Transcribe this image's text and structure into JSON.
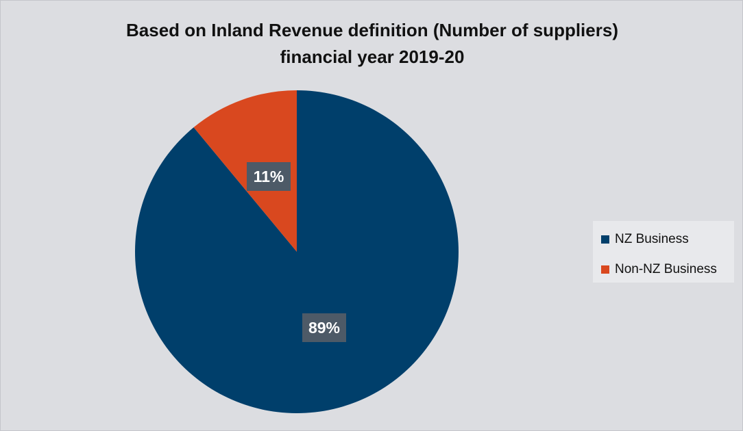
{
  "chart_data": {
    "type": "pie",
    "title": "Based on Inland Revenue definition (Number of suppliers)",
    "subtitle": "financial year 2019-20",
    "series": [
      {
        "name": "NZ Business",
        "value": 89,
        "label": "89%",
        "color": "#003f6b"
      },
      {
        "name": "Non-NZ Business",
        "value": 11,
        "label": "11%",
        "color": "#d9481f"
      }
    ],
    "legend_position": "right"
  },
  "colors": {
    "background": "#dcdde1",
    "data_label_background": "#4d5a67",
    "data_label_text": "#ffffff"
  }
}
